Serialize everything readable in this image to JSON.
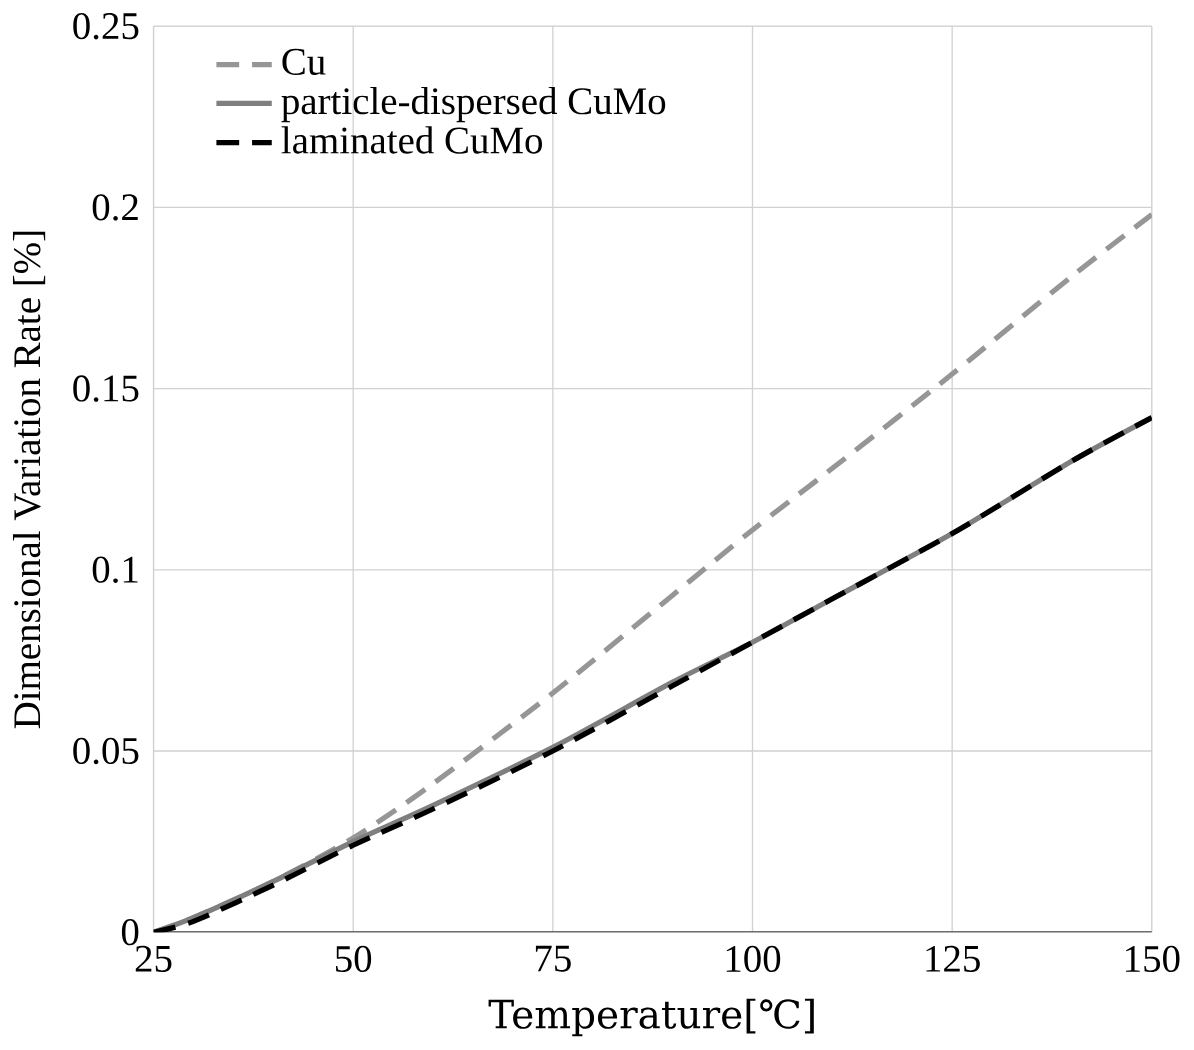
{
  "chart_data": {
    "type": "line",
    "xlabel": "Temperature[℃]",
    "ylabel": "Dimensional Variation Rate [%]",
    "x": [
      25,
      30,
      40,
      50,
      60,
      75,
      90,
      100,
      110,
      125,
      140,
      150
    ],
    "series": [
      {
        "name": "Cu",
        "color": "#969696",
        "line_style": "dashed",
        "values": [
          0,
          0.004,
          0.014,
          0.026,
          0.041,
          0.066,
          0.093,
          0.111,
          0.128,
          0.154,
          0.181,
          0.198
        ]
      },
      {
        "name": "particle-dispersed CuMo",
        "color": "#7f7f7f",
        "line_style": "solid",
        "values": [
          0,
          0.004,
          0.014,
          0.025,
          0.035,
          0.051,
          0.069,
          0.08,
          0.092,
          0.11,
          0.13,
          0.142
        ]
      },
      {
        "name": "laminated CuMo",
        "color": "#000000",
        "line_style": "dashed",
        "values": [
          0,
          0.003,
          0.013,
          0.024,
          0.034,
          0.05,
          0.068,
          0.08,
          0.092,
          0.11,
          0.13,
          0.142
        ]
      }
    ],
    "xlim": [
      25,
      150
    ],
    "xticks": [
      25,
      50,
      75,
      100,
      125,
      150
    ],
    "ylim": [
      0,
      0.25
    ],
    "yticks": [
      0,
      0.05,
      0.1,
      0.15,
      0.2,
      0.25
    ],
    "grid": true,
    "legend": "top left",
    "marker": "none"
  }
}
